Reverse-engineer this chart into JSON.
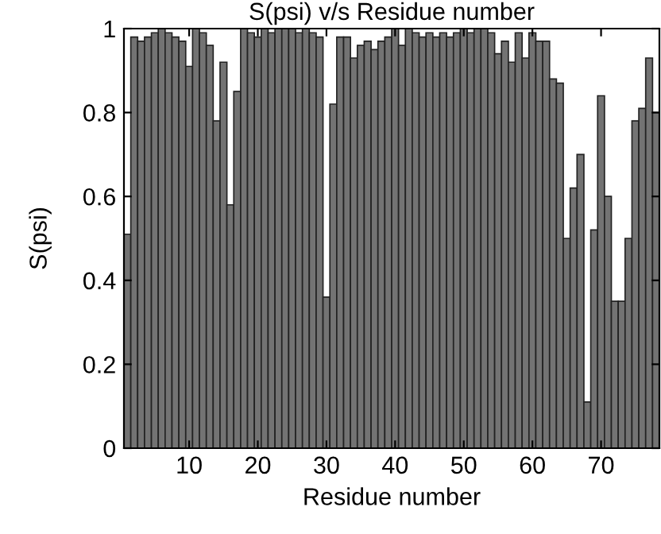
{
  "chart_data": {
    "type": "bar",
    "title": "S(psi) v/s Residue number",
    "xlabel": "Residue number",
    "ylabel": "S(psi)",
    "x": [
      1,
      2,
      3,
      4,
      5,
      6,
      7,
      8,
      9,
      10,
      11,
      12,
      13,
      14,
      15,
      16,
      17,
      18,
      19,
      20,
      21,
      22,
      23,
      24,
      25,
      26,
      27,
      28,
      29,
      30,
      31,
      32,
      33,
      34,
      35,
      36,
      37,
      38,
      39,
      40,
      41,
      42,
      43,
      44,
      45,
      46,
      47,
      48,
      49,
      50,
      51,
      52,
      53,
      54,
      55,
      56,
      57,
      58,
      59,
      60,
      61,
      62,
      63,
      64,
      65,
      66,
      67,
      68,
      69,
      70,
      71,
      72,
      73,
      74,
      75,
      76,
      77,
      78
    ],
    "values": [
      0.51,
      0.98,
      0.97,
      0.98,
      0.99,
      1.0,
      0.99,
      0.98,
      0.97,
      0.91,
      1.0,
      0.99,
      0.96,
      0.78,
      0.92,
      0.58,
      0.85,
      1.0,
      0.99,
      0.98,
      1.0,
      0.99,
      1.0,
      1.0,
      1.0,
      0.99,
      1.0,
      0.99,
      0.98,
      0.36,
      0.82,
      0.98,
      0.98,
      0.93,
      0.96,
      0.97,
      0.95,
      0.97,
      0.98,
      1.0,
      0.96,
      1.0,
      0.99,
      0.98,
      0.99,
      0.98,
      0.99,
      0.98,
      0.99,
      1.0,
      0.99,
      1.0,
      1.0,
      0.99,
      0.94,
      0.97,
      0.92,
      0.99,
      0.93,
      0.99,
      0.97,
      0.97,
      0.88,
      0.87,
      0.5,
      0.62,
      0.7,
      0.11,
      0.52,
      0.84,
      0.6,
      0.35,
      0.35,
      0.5,
      0.78,
      0.81,
      0.93,
      0.8
    ],
    "color": "#737373",
    "xlim": [
      0.5,
      78.5
    ],
    "xticks": [
      10,
      20,
      30,
      40,
      50,
      60,
      70
    ],
    "ylim": [
      0,
      1
    ],
    "yticks": [
      0,
      0.2,
      0.4,
      0.6,
      0.8,
      1
    ],
    "grid": false,
    "legend": false
  }
}
